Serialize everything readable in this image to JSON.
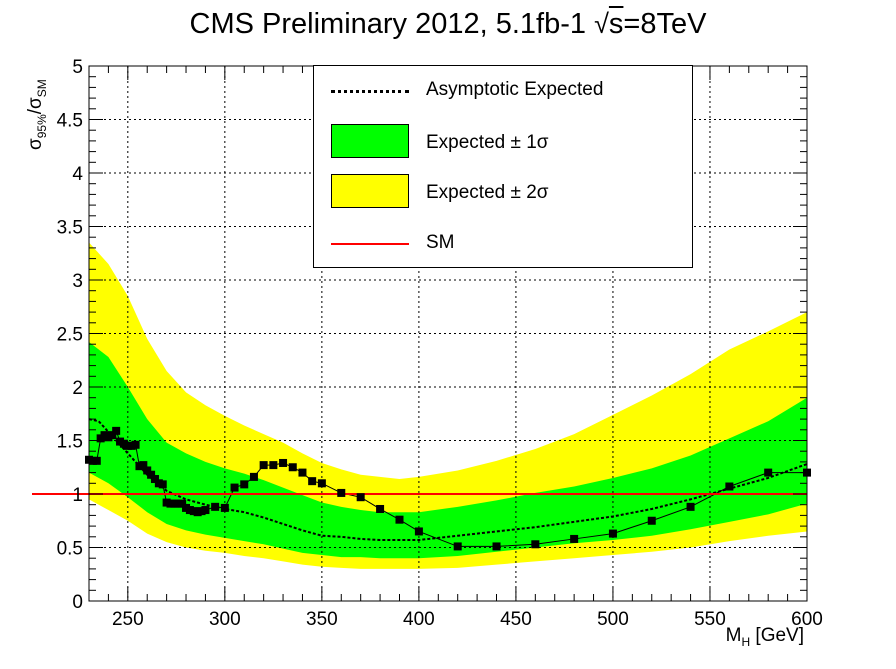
{
  "title": {
    "main": "CMS Preliminary 2012, 5.1fb-1",
    "sqrt_symbol": "√",
    "sqrt_arg": "s",
    "energy": "=8TeV"
  },
  "axes": {
    "xlabel_main": "M",
    "xlabel_sub": "H",
    "xlabel_unit": " [GeV]",
    "ylabel_num": "σ",
    "ylabel_num_sub": "95%",
    "ylabel_slash": "/σ",
    "ylabel_den_sub": "SM"
  },
  "legend": {
    "expected_label": "Asymptotic Expected",
    "band1_label": "Expected ± 1σ",
    "band2_label": "Expected ± 2σ",
    "sm_label": "SM"
  },
  "colors": {
    "band1": "#00ff00",
    "band2": "#ffff00",
    "sm_line": "#ff0000",
    "expected": "#000000",
    "observed": "#000000"
  },
  "chart_data": {
    "type": "line",
    "title": "CMS Preliminary 2012, 5.1fb-1 √s=8TeV",
    "xlabel": "M_H [GeV]",
    "ylabel": "σ95%/σSM",
    "xlim": [
      230,
      600
    ],
    "ylim": [
      0,
      5
    ],
    "x_ticks": [
      250,
      300,
      350,
      400,
      450,
      500,
      550,
      600
    ],
    "y_ticks": [
      "0",
      "0.5",
      "1",
      "1.5",
      "2",
      "2.5",
      "3",
      "3.5",
      "4",
      "4.5",
      "5"
    ],
    "grid": true,
    "legend_position": "top-right",
    "sm_reference": 1.0,
    "series": [
      {
        "name": "Asymptotic Expected",
        "style": "dotted",
        "x": [
          230,
          235,
          240,
          250,
          260,
          270,
          280,
          290,
          300,
          310,
          320,
          330,
          340,
          350,
          360,
          370,
          380,
          390,
          400,
          420,
          440,
          460,
          480,
          500,
          520,
          540,
          560,
          580,
          600
        ],
        "y": [
          1.7,
          1.68,
          1.58,
          1.38,
          1.18,
          1.03,
          0.95,
          0.9,
          0.86,
          0.83,
          0.78,
          0.72,
          0.66,
          0.61,
          0.6,
          0.58,
          0.57,
          0.57,
          0.57,
          0.61,
          0.65,
          0.69,
          0.74,
          0.79,
          0.86,
          0.95,
          1.05,
          1.15,
          1.28
        ]
      },
      {
        "name": "Expected ± 1σ",
        "x": [
          230,
          240,
          250,
          260,
          270,
          280,
          290,
          300,
          310,
          320,
          330,
          340,
          350,
          360,
          370,
          380,
          390,
          400,
          420,
          440,
          460,
          480,
          500,
          520,
          540,
          560,
          580,
          600
        ],
        "low": [
          1.2,
          1.1,
          0.97,
          0.83,
          0.72,
          0.66,
          0.62,
          0.59,
          0.56,
          0.53,
          0.49,
          0.45,
          0.43,
          0.41,
          0.41,
          0.4,
          0.4,
          0.4,
          0.42,
          0.46,
          0.5,
          0.54,
          0.57,
          0.61,
          0.67,
          0.74,
          0.81,
          0.91
        ],
        "high": [
          2.42,
          2.28,
          2.0,
          1.7,
          1.48,
          1.38,
          1.3,
          1.24,
          1.19,
          1.13,
          1.06,
          0.99,
          0.92,
          0.88,
          0.85,
          0.83,
          0.83,
          0.83,
          0.88,
          0.94,
          1.01,
          1.07,
          1.15,
          1.24,
          1.36,
          1.52,
          1.68,
          1.9
        ]
      },
      {
        "name": "Expected ± 2σ",
        "x": [
          230,
          240,
          250,
          260,
          270,
          280,
          290,
          300,
          310,
          320,
          330,
          340,
          350,
          360,
          370,
          380,
          390,
          400,
          420,
          440,
          460,
          480,
          500,
          520,
          540,
          560,
          580,
          600
        ],
        "low": [
          0.95,
          0.85,
          0.75,
          0.63,
          0.55,
          0.5,
          0.47,
          0.45,
          0.42,
          0.4,
          0.37,
          0.34,
          0.32,
          0.31,
          0.3,
          0.3,
          0.3,
          0.3,
          0.31,
          0.34,
          0.37,
          0.4,
          0.43,
          0.46,
          0.5,
          0.56,
          0.61,
          0.65
        ],
        "high": [
          3.35,
          3.15,
          2.85,
          2.45,
          2.15,
          1.95,
          1.83,
          1.73,
          1.64,
          1.56,
          1.48,
          1.38,
          1.29,
          1.23,
          1.18,
          1.16,
          1.14,
          1.16,
          1.22,
          1.31,
          1.42,
          1.56,
          1.74,
          1.92,
          2.12,
          2.35,
          2.52,
          2.7
        ]
      },
      {
        "name": "Observed",
        "style": "solid-markers",
        "x": [
          230,
          232,
          234,
          236,
          238,
          240,
          242,
          244,
          246,
          248,
          250,
          252,
          254,
          256,
          258,
          260,
          262,
          264,
          266,
          268,
          270,
          272,
          274,
          276,
          278,
          280,
          282,
          284,
          286,
          288,
          290,
          295,
          300,
          305,
          310,
          315,
          320,
          325,
          330,
          335,
          340,
          345,
          350,
          360,
          370,
          380,
          390,
          400,
          420,
          440,
          460,
          480,
          500,
          520,
          540,
          560,
          580,
          600
        ],
        "y": [
          1.32,
          1.31,
          1.31,
          1.52,
          1.55,
          1.53,
          1.55,
          1.59,
          1.49,
          1.47,
          1.45,
          1.45,
          1.46,
          1.26,
          1.27,
          1.22,
          1.18,
          1.14,
          1.1,
          1.09,
          0.92,
          0.91,
          0.91,
          0.91,
          0.91,
          0.87,
          0.85,
          0.84,
          0.83,
          0.84,
          0.85,
          0.88,
          0.87,
          1.06,
          1.09,
          1.16,
          1.27,
          1.27,
          1.29,
          1.25,
          1.2,
          1.12,
          1.1,
          1.01,
          0.97,
          0.86,
          0.76,
          0.65,
          0.51,
          0.51,
          0.53,
          0.58,
          0.63,
          0.75,
          0.88,
          1.07,
          1.2,
          1.2
        ]
      },
      {
        "name": "SM",
        "x": [
          230,
          600
        ],
        "y": [
          1.0,
          1.0
        ]
      }
    ]
  }
}
